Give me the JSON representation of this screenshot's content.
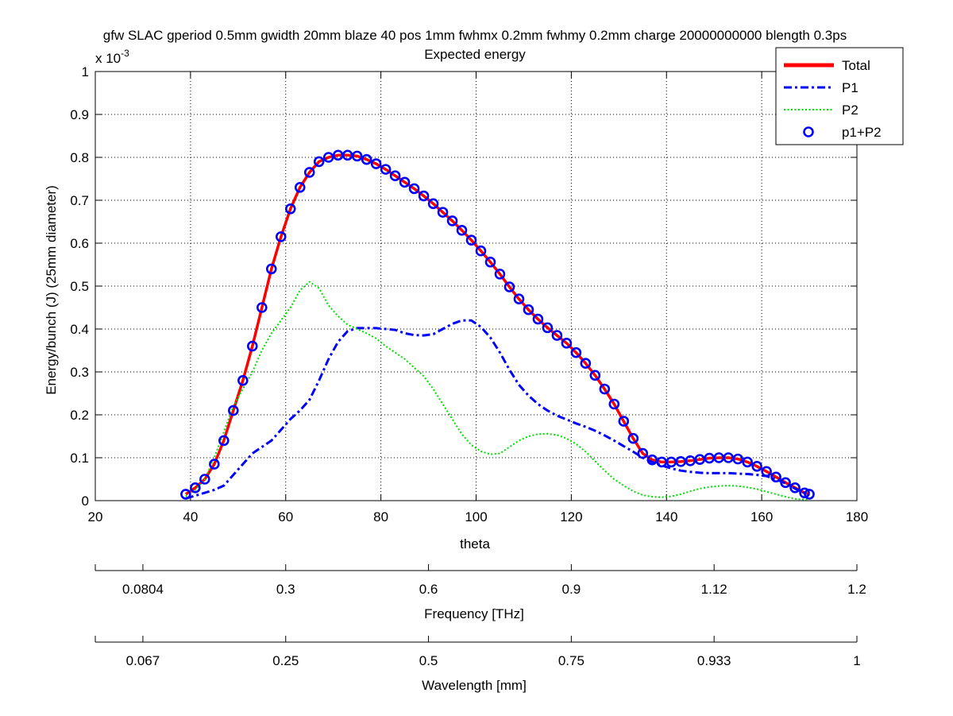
{
  "chart_data": {
    "type": "line",
    "title_line1": "gfw SLAC gperiod 0.5mm gwidth 20mm blaze 40 pos 1mm fwhmx 0.2mm fwhmy 0.2mm charge 20000000000 blength 0.3ps",
    "title_line2": "Expected energy",
    "xlabel": "theta",
    "ylabel": "Energy/bunch (J) (25mm diameter)",
    "y_exponent_label": "x 10",
    "y_exponent_power": "-3",
    "xlim": [
      20,
      180
    ],
    "ylim": [
      0,
      1
    ],
    "x_ticks": [
      20,
      40,
      60,
      80,
      100,
      120,
      140,
      160,
      180
    ],
    "x_tick_labels": [
      "20",
      "40",
      "60",
      "80",
      "100",
      "120",
      "140",
      "160",
      "180"
    ],
    "y_ticks": [
      0,
      0.1,
      0.2,
      0.3,
      0.4,
      0.5,
      0.6,
      0.7,
      0.8,
      0.9,
      1
    ],
    "y_tick_labels": [
      "0",
      "0.1",
      "0.2",
      "0.3",
      "0.4",
      "0.5",
      "0.6",
      "0.7",
      "0.8",
      "0.9",
      "1"
    ],
    "grid": true,
    "legend_position": "top-right",
    "series": [
      {
        "name": "Total",
        "color": "#ff0000",
        "style": "solid",
        "x": [
          39,
          41,
          43,
          45,
          47,
          49,
          51,
          53,
          55,
          57,
          59,
          61,
          63,
          65,
          67,
          69,
          71,
          73,
          75,
          77,
          79,
          81,
          83,
          85,
          87,
          89,
          91,
          93,
          95,
          97,
          99,
          101,
          103,
          105,
          107,
          109,
          111,
          113,
          115,
          117,
          119,
          121,
          123,
          125,
          127,
          129,
          131,
          133,
          135,
          137,
          139,
          141,
          143,
          145,
          147,
          149,
          151,
          153,
          155,
          157,
          159,
          161,
          163,
          165,
          167,
          169,
          170
        ],
        "y": [
          0.015,
          0.03,
          0.05,
          0.085,
          0.14,
          0.21,
          0.28,
          0.36,
          0.45,
          0.54,
          0.615,
          0.68,
          0.73,
          0.765,
          0.79,
          0.8,
          0.805,
          0.805,
          0.803,
          0.795,
          0.785,
          0.772,
          0.757,
          0.742,
          0.727,
          0.71,
          0.692,
          0.672,
          0.652,
          0.63,
          0.607,
          0.582,
          0.556,
          0.528,
          0.498,
          0.47,
          0.445,
          0.423,
          0.403,
          0.385,
          0.367,
          0.345,
          0.32,
          0.292,
          0.26,
          0.225,
          0.185,
          0.145,
          0.11,
          0.095,
          0.09,
          0.09,
          0.091,
          0.093,
          0.096,
          0.099,
          0.1,
          0.1,
          0.097,
          0.09,
          0.08,
          0.068,
          0.055,
          0.042,
          0.03,
          0.018,
          0.015
        ]
      },
      {
        "name": "P1",
        "color": "#0000ff",
        "style": "dashdot",
        "x": [
          39,
          42,
          45,
          47,
          49,
          51,
          53,
          55,
          57,
          59,
          61,
          63,
          65,
          67,
          69,
          71,
          73,
          75,
          77,
          79,
          81,
          83,
          85,
          87,
          89,
          91,
          93,
          95,
          97,
          99,
          101,
          103,
          105,
          107,
          109,
          111,
          113,
          115,
          117,
          119,
          121,
          123,
          125,
          127,
          129,
          131,
          133,
          135,
          137,
          139,
          141,
          143,
          145,
          147,
          149,
          151,
          153,
          155,
          157,
          159,
          161,
          163,
          165,
          167,
          170
        ],
        "y": [
          0.005,
          0.015,
          0.025,
          0.035,
          0.06,
          0.085,
          0.11,
          0.125,
          0.14,
          0.165,
          0.19,
          0.21,
          0.235,
          0.28,
          0.33,
          0.37,
          0.395,
          0.402,
          0.402,
          0.402,
          0.4,
          0.398,
          0.39,
          0.386,
          0.385,
          0.388,
          0.4,
          0.412,
          0.42,
          0.42,
          0.405,
          0.38,
          0.345,
          0.305,
          0.27,
          0.245,
          0.225,
          0.21,
          0.198,
          0.189,
          0.18,
          0.172,
          0.163,
          0.152,
          0.14,
          0.127,
          0.114,
          0.1,
          0.09,
          0.082,
          0.075,
          0.07,
          0.067,
          0.065,
          0.064,
          0.064,
          0.064,
          0.063,
          0.062,
          0.06,
          0.057,
          0.05,
          0.04,
          0.028,
          0.012
        ]
      },
      {
        "name": "P2",
        "color": "#00dd00",
        "style": "dotted",
        "x": [
          39,
          41,
          43,
          45,
          47,
          49,
          51,
          53,
          55,
          57,
          59,
          61,
          63,
          65,
          67,
          69,
          71,
          73,
          75,
          77,
          79,
          81,
          83,
          85,
          87,
          89,
          91,
          93,
          95,
          97,
          99,
          101,
          103,
          105,
          107,
          109,
          111,
          113,
          115,
          117,
          119,
          121,
          123,
          125,
          127,
          129,
          131,
          133,
          135,
          137,
          139,
          141,
          143,
          145,
          147,
          149,
          151,
          153,
          155,
          157,
          159,
          161,
          163,
          165,
          167,
          170
        ],
        "y": [
          0.01,
          0.025,
          0.05,
          0.1,
          0.16,
          0.22,
          0.26,
          0.3,
          0.35,
          0.39,
          0.42,
          0.45,
          0.49,
          0.51,
          0.495,
          0.455,
          0.43,
          0.41,
          0.4,
          0.39,
          0.378,
          0.36,
          0.345,
          0.33,
          0.31,
          0.29,
          0.26,
          0.225,
          0.19,
          0.155,
          0.13,
          0.115,
          0.108,
          0.11,
          0.125,
          0.14,
          0.15,
          0.155,
          0.156,
          0.153,
          0.145,
          0.132,
          0.114,
          0.092,
          0.07,
          0.05,
          0.035,
          0.022,
          0.013,
          0.009,
          0.008,
          0.01,
          0.015,
          0.022,
          0.028,
          0.032,
          0.034,
          0.035,
          0.034,
          0.031,
          0.027,
          0.021,
          0.015,
          0.009,
          0.004,
          0.002
        ]
      },
      {
        "name": "p1+P2",
        "color": "#0000ff",
        "style": "circles",
        "x": [
          39,
          41,
          43,
          45,
          47,
          49,
          51,
          53,
          55,
          57,
          59,
          61,
          63,
          65,
          67,
          69,
          71,
          73,
          75,
          77,
          79,
          81,
          83,
          85,
          87,
          89,
          91,
          93,
          95,
          97,
          99,
          101,
          103,
          105,
          107,
          109,
          111,
          113,
          115,
          117,
          119,
          121,
          123,
          125,
          127,
          129,
          131,
          133,
          135,
          137,
          139,
          141,
          143,
          145,
          147,
          149,
          151,
          153,
          155,
          157,
          159,
          161,
          163,
          165,
          167,
          169,
          170
        ],
        "y": [
          0.015,
          0.03,
          0.05,
          0.085,
          0.14,
          0.21,
          0.28,
          0.36,
          0.45,
          0.54,
          0.615,
          0.68,
          0.73,
          0.765,
          0.79,
          0.8,
          0.805,
          0.805,
          0.803,
          0.795,
          0.785,
          0.772,
          0.757,
          0.742,
          0.727,
          0.71,
          0.692,
          0.672,
          0.652,
          0.63,
          0.607,
          0.582,
          0.556,
          0.528,
          0.498,
          0.47,
          0.445,
          0.423,
          0.403,
          0.385,
          0.367,
          0.345,
          0.32,
          0.292,
          0.26,
          0.225,
          0.185,
          0.145,
          0.11,
          0.095,
          0.09,
          0.09,
          0.091,
          0.093,
          0.096,
          0.099,
          0.1,
          0.1,
          0.097,
          0.09,
          0.08,
          0.068,
          0.055,
          0.042,
          0.03,
          0.018,
          0.015
        ]
      }
    ],
    "secondary_axes": [
      {
        "label": "Frequency [THz]",
        "tick_theta": [
          20,
          30,
          60,
          90,
          120,
          150,
          180
        ],
        "tick_labels": [
          "",
          "0.0804",
          "0.3",
          "0.6",
          "0.9",
          "1.12",
          "1.2"
        ]
      },
      {
        "label": "Wavelength [mm]",
        "tick_theta": [
          20,
          30,
          60,
          90,
          120,
          150,
          180
        ],
        "tick_labels": [
          "",
          "0.067",
          "0.25",
          "0.5",
          "0.75",
          "0.933",
          "1"
        ]
      }
    ]
  }
}
